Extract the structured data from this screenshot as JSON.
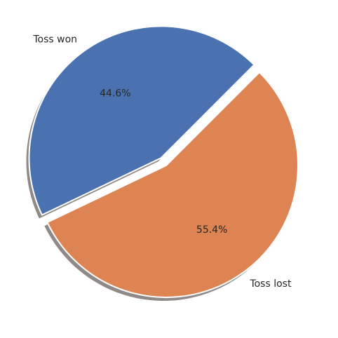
{
  "chart_data": {
    "type": "pie",
    "categories": [
      "Toss won",
      "Toss lost"
    ],
    "values": [
      44.6,
      55.4
    ],
    "percent_labels": [
      "44.6%",
      "55.4%"
    ],
    "colors": [
      "#4a72b0",
      "#de8452"
    ],
    "explode": [
      true,
      false
    ],
    "shadow": true,
    "start_angle_deg": 45,
    "direction": "counterclockwise"
  }
}
